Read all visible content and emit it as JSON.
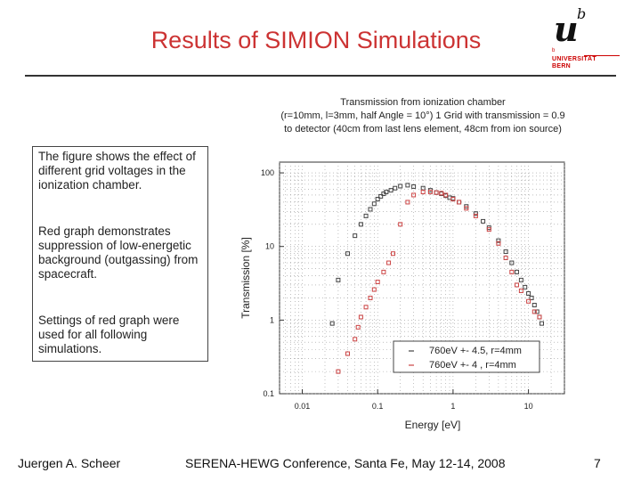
{
  "slide": {
    "title": "Results of SIMION Simulations",
    "logo": {
      "u": "u",
      "b": "b",
      "sup": "b",
      "line1": "UNIVERSITÄT",
      "line2": "BERN"
    },
    "paragraphs": [
      "The figure shows the effect of different grid voltages in the ionization chamber.",
      "Red graph demonstrates suppression of low-energetic background (outgassing) from spacecraft.",
      "Settings of red graph were used for all following simulations."
    ],
    "footer": {
      "author": "Juergen A. Scheer",
      "conference": "SERENA-HEWG Conference, Santa Fe, May 12-14, 2008",
      "page": "7"
    }
  },
  "chart_data": {
    "type": "scatter",
    "title_lines": [
      "Transmission from ionization chamber",
      "(r=10mm, l=3mm, half Angle = 10°) 1 Grid with transmission = 0.9",
      "to detector (40cm from last lens element, 48cm from ion source)"
    ],
    "xlabel": "Energy [eV]",
    "ylabel": "Transmission [%]",
    "xscale": "log",
    "yscale": "log",
    "xlim": [
      0.005,
      30
    ],
    "ylim": [
      0.1,
      140
    ],
    "xticks": [
      0.01,
      0.1,
      1,
      10
    ],
    "xtick_labels": [
      "0.01",
      "0.1",
      "1",
      "10"
    ],
    "yticks": [
      0.1,
      1,
      10,
      100
    ],
    "ytick_labels": [
      "0.1",
      "1",
      "10",
      "100"
    ],
    "grid": true,
    "legend_position": "bottom-right",
    "series": [
      {
        "name": "760eV +- 4.5, r=4mm",
        "color": "#444444",
        "x": [
          0.025,
          0.03,
          0.04,
          0.05,
          0.06,
          0.07,
          0.08,
          0.09,
          0.1,
          0.11,
          0.12,
          0.13,
          0.15,
          0.17,
          0.2,
          0.25,
          0.3,
          0.4,
          0.5,
          0.6,
          0.7,
          0.8,
          0.9,
          1.0,
          1.2,
          1.5,
          2.0,
          2.5,
          3.0,
          4.0,
          5.0,
          6.0,
          7.0,
          8.0,
          9.0,
          10.0,
          11.0,
          12.0,
          13.0,
          14.0,
          15.0
        ],
        "y": [
          0.9,
          3.5,
          8.0,
          14.0,
          20.0,
          26.0,
          32.0,
          38.0,
          44.0,
          48.0,
          52.0,
          55.0,
          58.0,
          62.0,
          66.0,
          68.0,
          65.0,
          62.0,
          58.0,
          54.0,
          52.0,
          49.0,
          46.0,
          45.0,
          40.0,
          35.0,
          28.0,
          22.0,
          18.0,
          12.0,
          8.5,
          6.0,
          4.5,
          3.5,
          2.8,
          2.3,
          2.0,
          1.6,
          1.3,
          1.1,
          0.9
        ]
      },
      {
        "name": "760eV +- 4  , r=4mm",
        "color": "#cc4444",
        "x": [
          0.03,
          0.04,
          0.05,
          0.055,
          0.06,
          0.07,
          0.08,
          0.09,
          0.1,
          0.12,
          0.14,
          0.16,
          0.2,
          0.25,
          0.3,
          0.4,
          0.5,
          0.6,
          0.7,
          0.8,
          1.0,
          1.2,
          1.5,
          2.0,
          3.0,
          4.0,
          5.0,
          6.0,
          7.0,
          8.0,
          10.0,
          12.0,
          14.0
        ],
        "y": [
          0.2,
          0.35,
          0.55,
          0.8,
          1.1,
          1.5,
          2.0,
          2.6,
          3.3,
          4.5,
          6.0,
          8.0,
          20.0,
          40.0,
          50.0,
          55.0,
          55.0,
          54.0,
          53.0,
          50.0,
          44.0,
          40.0,
          33.0,
          26.0,
          17.0,
          11.0,
          7.0,
          4.5,
          3.0,
          2.5,
          1.8,
          1.3,
          1.1
        ]
      }
    ]
  }
}
